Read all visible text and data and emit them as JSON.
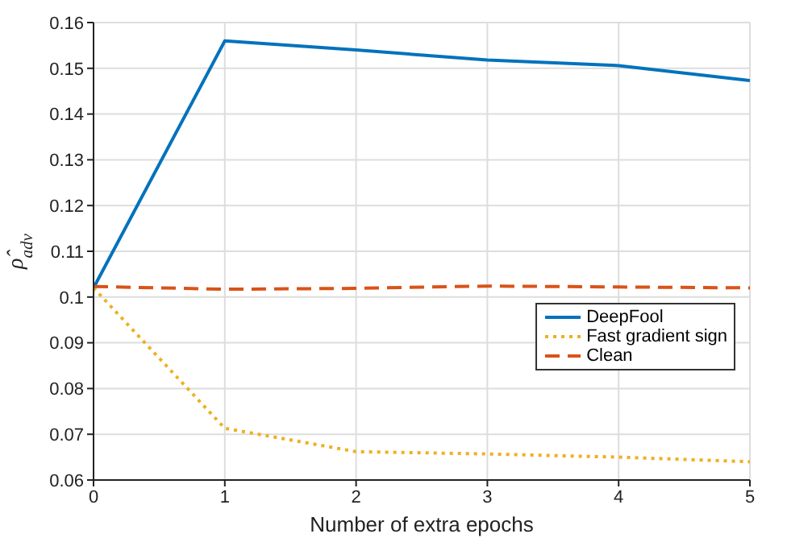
{
  "chart_data": {
    "type": "line",
    "xlabel": "Number of extra epochs",
    "ylabel": "ρ̂$_{adv}$",
    "x": [
      0,
      1,
      2,
      3,
      4,
      5
    ],
    "series": [
      {
        "name": "DeepFool",
        "color": "#0072bd",
        "line_style": "solid",
        "values": [
          0.102,
          0.156,
          0.154,
          0.1518,
          0.1506,
          0.1473
        ]
      },
      {
        "name": "Fast gradient sign",
        "color": "#edb120",
        "line_style": "dotted",
        "values": [
          0.102,
          0.0713,
          0.0662,
          0.0657,
          0.065,
          0.064
        ]
      },
      {
        "name": "Clean",
        "color": "#d95319",
        "line_style": "dashed",
        "values": [
          0.1023,
          0.1017,
          0.1019,
          0.1024,
          0.1022,
          0.102
        ]
      }
    ],
    "xlim": [
      0,
      5
    ],
    "xticks": [
      0,
      1,
      2,
      3,
      4,
      5
    ],
    "ylim": [
      0.06,
      0.16
    ],
    "yticks": [
      0.06,
      0.07,
      0.08,
      0.09,
      0.1,
      0.11,
      0.12,
      0.13,
      0.14,
      0.15,
      0.16
    ],
    "grid": true,
    "legend": "right",
    "marker": "none"
  }
}
